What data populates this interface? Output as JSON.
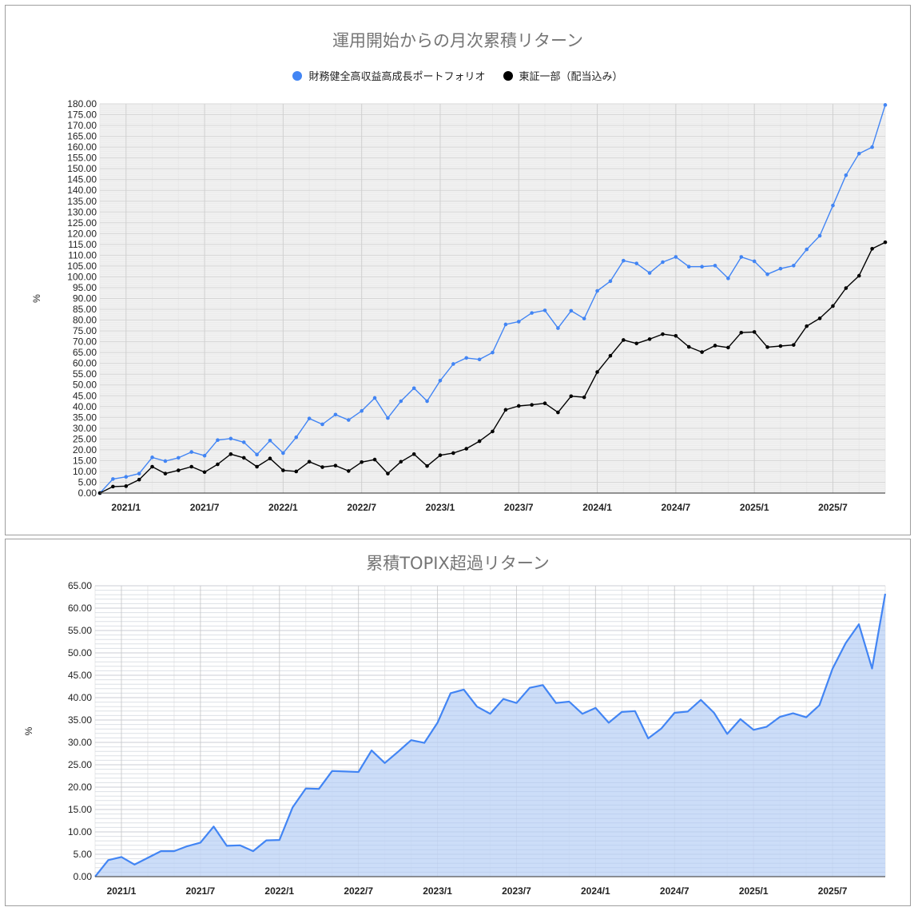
{
  "chart_data": [
    {
      "type": "line",
      "title": "運用開始からの月次累積リターン",
      "xlabel": "",
      "ylabel": "%",
      "ylim": [
        0,
        180
      ],
      "ytick_step": 5,
      "grid": true,
      "legend_position": "top",
      "x_tick_labels": [
        "2021/1",
        "2021/7",
        "2022/1",
        "2022/7",
        "2023/1",
        "2023/7",
        "2024/1",
        "2024/7",
        "2025/1",
        "2025/7"
      ],
      "x": [
        "2020/11",
        "2020/12",
        "2021/1",
        "2021/2",
        "2021/3",
        "2021/4",
        "2021/5",
        "2021/6",
        "2021/7",
        "2021/8",
        "2021/9",
        "2021/10",
        "2021/11",
        "2021/12",
        "2022/1",
        "2022/2",
        "2022/3",
        "2022/4",
        "2022/5",
        "2022/6",
        "2022/7",
        "2022/8",
        "2022/9",
        "2022/10",
        "2022/11",
        "2022/12",
        "2023/1",
        "2023/2",
        "2023/3",
        "2023/4",
        "2023/5",
        "2023/6",
        "2023/7",
        "2023/8",
        "2023/9",
        "2023/10",
        "2023/11",
        "2023/12",
        "2024/1",
        "2024/2",
        "2024/3",
        "2024/4",
        "2024/5",
        "2024/6",
        "2024/7",
        "2024/8",
        "2024/9",
        "2024/10",
        "2024/11",
        "2024/12",
        "2025/1",
        "2025/2",
        "2025/3",
        "2025/4",
        "2025/5",
        "2025/6",
        "2025/7",
        "2025/8",
        "2025/9",
        "2025/10",
        "2025/11"
      ],
      "series": [
        {
          "name": "財務健全高収益高成長ポートフォリオ",
          "color": "#4285f4",
          "values": [
            0,
            6.5,
            7.5,
            9,
            16.5,
            14.8,
            16.3,
            19,
            17.3,
            24.5,
            25.2,
            23.5,
            17.8,
            24.3,
            18.5,
            25.8,
            34.5,
            31.8,
            36.3,
            33.8,
            38,
            44,
            34.7,
            42.5,
            48.5,
            42.5,
            52,
            59.7,
            62.5,
            61.8,
            65,
            78,
            79.3,
            83.3,
            84.5,
            76.3,
            84.3,
            80.7,
            93.5,
            98,
            107.5,
            106.2,
            101.8,
            106.8,
            109.2,
            104.7,
            104.7,
            105.2,
            99.3,
            109.2,
            107.2,
            101.2,
            103.8,
            105.2,
            112.7,
            119,
            133,
            147,
            157,
            160,
            179.5
          ]
        },
        {
          "name": "東証一部（配当込み）",
          "color": "#000000",
          "values": [
            0,
            3,
            3.2,
            6.2,
            12.2,
            9,
            10.5,
            12.2,
            9.7,
            13.3,
            18,
            16.3,
            12.2,
            16,
            10.5,
            10,
            14.5,
            12,
            12.7,
            10.2,
            14.3,
            15.5,
            9,
            14.5,
            18,
            12.5,
            17.5,
            18.5,
            20.5,
            24,
            28.5,
            38.5,
            40.3,
            40.8,
            41.5,
            37.3,
            44.8,
            44.3,
            56,
            63.5,
            70.8,
            69.2,
            71.2,
            73.5,
            72.7,
            67.6,
            65.2,
            68.2,
            67.3,
            74.2,
            74.5,
            67.5,
            68,
            68.5,
            77.2,
            80.8,
            86.5,
            94.8,
            100.5,
            113,
            116
          ]
        }
      ]
    },
    {
      "type": "area",
      "title": "累積TOPIX超過リターン",
      "xlabel": "",
      "ylabel": "%",
      "ylim": [
        0,
        65
      ],
      "ytick_step": 5,
      "grid": true,
      "legend_position": "none",
      "x_tick_labels": [
        "2021/1",
        "2021/7",
        "2022/1",
        "2022/7",
        "2023/1",
        "2023/7",
        "2024/1",
        "2024/7",
        "2025/1",
        "2025/7"
      ],
      "x": [
        "2020/11",
        "2020/12",
        "2021/1",
        "2021/2",
        "2021/3",
        "2021/4",
        "2021/5",
        "2021/6",
        "2021/7",
        "2021/8",
        "2021/9",
        "2021/10",
        "2021/11",
        "2021/12",
        "2022/1",
        "2022/2",
        "2022/3",
        "2022/4",
        "2022/5",
        "2022/6",
        "2022/7",
        "2022/8",
        "2022/9",
        "2022/10",
        "2022/11",
        "2022/12",
        "2023/1",
        "2023/2",
        "2023/3",
        "2023/4",
        "2023/5",
        "2023/6",
        "2023/7",
        "2023/8",
        "2023/9",
        "2023/10",
        "2023/11",
        "2023/12",
        "2024/1",
        "2024/2",
        "2024/3",
        "2024/4",
        "2024/5",
        "2024/6",
        "2024/7",
        "2024/8",
        "2024/9",
        "2024/10",
        "2024/11",
        "2024/12",
        "2025/1",
        "2025/2",
        "2025/3",
        "2025/4",
        "2025/5",
        "2025/6",
        "2025/7",
        "2025/8",
        "2025/9",
        "2025/10",
        "2025/11"
      ],
      "series": [
        {
          "name": "累積TOPIX超過リターン",
          "color": "#4285f4",
          "fill": "#c3d7f7",
          "values": [
            0,
            3.7,
            4.4,
            2.7,
            4.2,
            5.7,
            5.7,
            6.8,
            7.6,
            11.2,
            6.9,
            7,
            5.7,
            8.1,
            8.2,
            15.5,
            19.7,
            19.6,
            23.6,
            23.5,
            23.4,
            28.2,
            25.4,
            27.9,
            30.5,
            29.9,
            34.4,
            41,
            41.8,
            38,
            36.4,
            39.7,
            38.8,
            42.2,
            42.8,
            38.8,
            39.1,
            36.4,
            37.7,
            34.4,
            36.8,
            37,
            30.9,
            33.1,
            36.6,
            36.9,
            39.5,
            36.6,
            31.9,
            35.2,
            32.8,
            33.5,
            35.7,
            36.5,
            35.6,
            38.3,
            46.5,
            52.2,
            56.4,
            46.5,
            63.2
          ]
        }
      ]
    }
  ],
  "top_chart": {
    "title": "運用開始からの月次累積リターン",
    "legend": [
      {
        "label": "財務健全高収益高成長ポートフォリオ",
        "color": "#4285f4"
      },
      {
        "label": "東証一部（配当込み）",
        "color": "#000000"
      }
    ],
    "y_axis_label": "%"
  },
  "bottom_chart": {
    "title": "累積TOPIX超過リターン",
    "y_axis_label": "%"
  }
}
